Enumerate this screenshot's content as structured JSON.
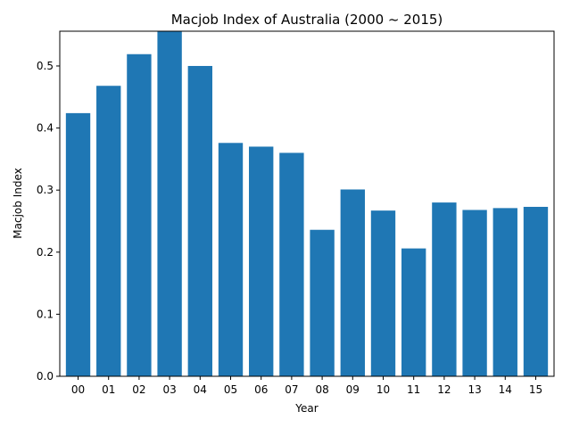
{
  "chart_data": {
    "type": "bar",
    "title": "Macjob Index of Australia (2000 ~ 2015)",
    "xlabel": "Year",
    "ylabel": "Macjob Index",
    "categories": [
      "00",
      "01",
      "02",
      "03",
      "04",
      "05",
      "06",
      "07",
      "08",
      "09",
      "10",
      "11",
      "12",
      "13",
      "14",
      "15"
    ],
    "values": [
      0.424,
      0.468,
      0.519,
      0.556,
      0.5,
      0.376,
      0.37,
      0.36,
      0.236,
      0.301,
      0.267,
      0.206,
      0.28,
      0.268,
      0.271,
      0.273
    ],
    "ylim": [
      0,
      0.556
    ],
    "yticks": [
      "0.0",
      "0.1",
      "0.2",
      "0.3",
      "0.4",
      "0.5"
    ],
    "grid": false,
    "bar_color": "#1f77b4"
  }
}
